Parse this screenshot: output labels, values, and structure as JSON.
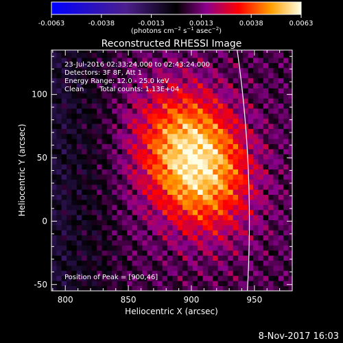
{
  "colorbar": {
    "ticks": [
      "-0.0063",
      "-0.0038",
      "-0.0013",
      "0.0013",
      "0.0038",
      "0.0063"
    ],
    "range": [
      -0.0063,
      0.0063
    ]
  },
  "chart_data": {
    "type": "heatmap",
    "title": "Reconstructed RHESSI Image",
    "xlabel": "Heliocentric X (arcsec)",
    "ylabel": "Heliocentric Y (arcsec)",
    "xlim": [
      789,
      980
    ],
    "ylim": [
      -55,
      135
    ],
    "xticks": [
      800,
      850,
      900,
      950
    ],
    "yticks": [
      -50,
      0,
      50,
      100
    ],
    "peak": [
      900,
      46
    ],
    "peak_value": 0.0063,
    "source_sigma_arcsec": [
      28,
      38
    ],
    "limb_arc": {
      "center": [
        0,
        0
      ],
      "radius_arcsec": 946
    },
    "annotations": [
      "23-Jul-2016 02:33:24.000 to 02:43:24.000",
      "Detectors: 3F 8F, Att 1",
      "Energy Range: 12.0 - 25.0 keV",
      "Clean",
      "Total counts: 1.13E+04",
      "Position of Peak = [900,46]"
    ]
  },
  "footer": {
    "timestamp": "8-Nov-2017 16:03"
  }
}
